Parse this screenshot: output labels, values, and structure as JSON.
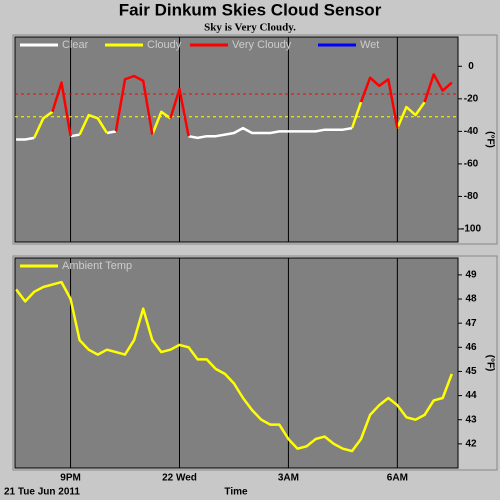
{
  "chart_data": [
    {
      "type": "line",
      "title": "Fair Dinkum Skies Cloud Sensor",
      "subtitle": "Sky is Very Cloudy.",
      "y_label": "(°F)",
      "x": [
        19.5,
        19.75,
        20,
        20.25,
        20.5,
        20.75,
        21,
        21.25,
        21.5,
        21.75,
        22,
        22.25,
        22.5,
        22.75,
        23,
        23.25,
        23.5,
        23.75,
        24,
        24.25,
        24.5,
        24.75,
        25,
        25.25,
        25.5,
        25.75,
        26,
        26.25,
        26.5,
        26.75,
        27,
        27.25,
        27.5,
        27.75,
        28,
        28.25,
        28.5,
        28.75,
        29,
        29.25,
        29.5,
        29.75,
        30,
        30.25,
        30.5,
        30.75,
        31,
        31.25,
        31.5
      ],
      "xlim": [
        19.47,
        31.67
      ],
      "xticks": [
        21,
        24,
        27,
        30
      ],
      "ylim": [
        -108,
        18
      ],
      "yticks": [
        0,
        -20,
        -40,
        -60,
        -80,
        -100
      ],
      "grid": "x",
      "thresholds": [
        {
          "value": -17,
          "color": "#ff0000"
        },
        {
          "value": -31,
          "color": "#ffff00"
        }
      ],
      "series": [
        {
          "name": "Clear",
          "color": "#ffffff",
          "values": [
            -45,
            -45,
            -44,
            null,
            null,
            null,
            -43,
            -42,
            null,
            null,
            -41,
            -40,
            null,
            null,
            null,
            -42,
            null,
            null,
            null,
            -43,
            -44,
            -43,
            -43,
            -42,
            -41,
            -38,
            -41,
            -41,
            -41,
            -40,
            -40,
            -40,
            -40,
            -40,
            -39,
            -39,
            -39,
            -38,
            null,
            null,
            null,
            null,
            -38,
            null,
            null,
            null,
            null,
            null,
            null
          ]
        },
        {
          "name": "Cloudy",
          "color": "#ffff00",
          "values": [
            null,
            null,
            -44,
            -32,
            -28,
            null,
            null,
            -42,
            -30,
            -32,
            -41,
            null,
            null,
            null,
            null,
            -42,
            -28,
            -32,
            null,
            null,
            null,
            null,
            null,
            null,
            null,
            null,
            null,
            null,
            null,
            null,
            null,
            null,
            null,
            null,
            null,
            null,
            null,
            -38,
            -22,
            null,
            null,
            null,
            -38,
            -25,
            -30,
            -22,
            null,
            null,
            null
          ]
        },
        {
          "name": "Very Cloudy",
          "color": "#ff0000",
          "values": [
            null,
            null,
            null,
            null,
            -28,
            -10,
            -43,
            null,
            null,
            null,
            null,
            -40,
            -8,
            -6,
            -9,
            -42,
            null,
            -32,
            -14,
            -43,
            null,
            null,
            null,
            null,
            null,
            null,
            null,
            null,
            null,
            null,
            null,
            null,
            null,
            null,
            null,
            null,
            null,
            null,
            -22,
            -7,
            -12,
            -8,
            -38,
            null,
            null,
            -22,
            -5,
            -15,
            -10
          ]
        },
        {
          "name": "Wet",
          "color": "#0000ff",
          "values": [
            null,
            null,
            null,
            null,
            null,
            null,
            null,
            null,
            null,
            null,
            null,
            null,
            null,
            null,
            null,
            null,
            null,
            null,
            null,
            null,
            null,
            null,
            null,
            null,
            null,
            null,
            null,
            null,
            null,
            null,
            null,
            null,
            null,
            null,
            null,
            null,
            null,
            null,
            null,
            null,
            null,
            null,
            null,
            null,
            null,
            null,
            null,
            null,
            null
          ]
        }
      ]
    },
    {
      "type": "line",
      "y_label": "(°F)",
      "x_label": "Time",
      "date_label": "21 Tue Jun 2011",
      "x": [
        19.5,
        19.75,
        20,
        20.25,
        20.5,
        20.75,
        21,
        21.25,
        21.5,
        21.75,
        22,
        22.25,
        22.5,
        22.75,
        23,
        23.25,
        23.5,
        23.75,
        24,
        24.25,
        24.5,
        24.75,
        25,
        25.25,
        25.5,
        25.75,
        26,
        26.25,
        26.5,
        26.75,
        27,
        27.25,
        27.5,
        27.75,
        28,
        28.25,
        28.5,
        28.75,
        29,
        29.25,
        29.5,
        29.75,
        30,
        30.25,
        30.5,
        30.75,
        31,
        31.25,
        31.5
      ],
      "xlim": [
        19.47,
        31.67
      ],
      "xticks": [
        {
          "value": 21,
          "label": "9PM"
        },
        {
          "value": 24,
          "label": "22 Wed"
        },
        {
          "value": 27,
          "label": "3AM"
        },
        {
          "value": 30,
          "label": "6AM"
        }
      ],
      "ylim": [
        41,
        49.7
      ],
      "yticks": [
        42,
        43,
        44,
        45,
        46,
        47,
        48,
        49
      ],
      "grid": "x",
      "series": [
        {
          "name": "Ambient Temp",
          "color": "#ffff00",
          "values": [
            48.4,
            47.9,
            48.3,
            48.5,
            48.6,
            48.7,
            48.0,
            46.3,
            45.9,
            45.7,
            45.9,
            45.8,
            45.7,
            46.3,
            47.6,
            46.3,
            45.8,
            45.9,
            46.1,
            46.0,
            45.5,
            45.5,
            45.1,
            44.9,
            44.5,
            43.9,
            43.4,
            43.0,
            42.8,
            42.8,
            42.2,
            41.8,
            41.9,
            42.2,
            42.3,
            42.0,
            41.8,
            41.7,
            42.2,
            43.2,
            43.6,
            43.9,
            43.6,
            43.1,
            43.0,
            43.2,
            43.8,
            43.9,
            44.9
          ]
        }
      ]
    }
  ]
}
